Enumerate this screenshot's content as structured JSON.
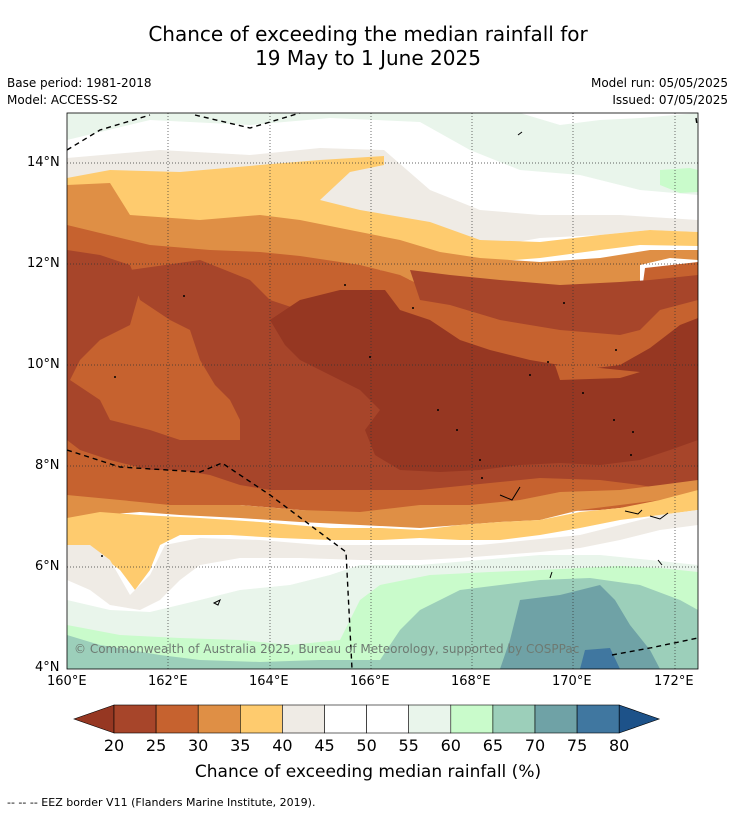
{
  "title_line1": "Chance of exceeding the median rainfall for",
  "title_line2": "19 May to 1 June 2025",
  "meta": {
    "base_period": "Base period: 1981-2018",
    "model": "Model: ACCESS-S2",
    "model_run": "Model run: 05/05/2025",
    "issued": "Issued: 07/05/2025"
  },
  "map": {
    "lat_labels": [
      "14°N",
      "12°N",
      "10°N",
      "8°N",
      "6°N",
      "4°N"
    ],
    "lon_labels": [
      "160°E",
      "162°E",
      "164°E",
      "166°E",
      "168°E",
      "170°E",
      "172°E"
    ],
    "copyright": "© Commonwealth of Australia 2025, Bureau of Meteorology, supported by COSPPac",
    "region": "Western Pacific: 160°E–172.5°E, 4°N–15°N"
  },
  "colorbar": {
    "ticks": [
      "20",
      "25",
      "30",
      "35",
      "40",
      "45",
      "50",
      "55",
      "60",
      "65",
      "70",
      "75",
      "80"
    ],
    "colors": [
      "#a7452a",
      "#c6622f",
      "#df8f45",
      "#fecb6e",
      "#efebe5",
      "#ffffff",
      "#ffffff",
      "#e9f5eb",
      "#c9fbcb",
      "#9ccfba",
      "#6fa2a6",
      "#4077a0"
    ],
    "under_color": "#963722",
    "over_color": "#1d5289",
    "label": "Chance of exceeding median rainfall (%)"
  },
  "footer": "-- -- -- EEZ border V11 (Flanders Marine Institute, 2019)."
}
